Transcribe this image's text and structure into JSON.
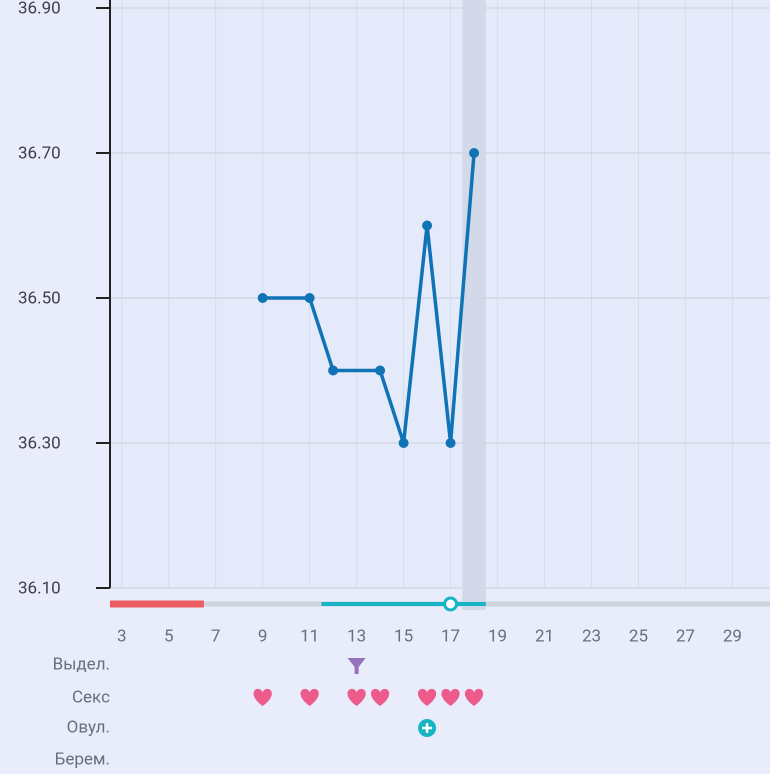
{
  "chart_data": {
    "type": "line",
    "x": [
      9,
      11,
      12,
      14,
      15,
      16,
      17,
      18
    ],
    "values": [
      36.5,
      36.5,
      36.4,
      36.4,
      36.3,
      36.6,
      36.3,
      36.7
    ],
    "color": "#0f73b6",
    "xlim": [
      2.5,
      30.6
    ],
    "xticks": [
      3,
      5,
      7,
      9,
      11,
      13,
      15,
      17,
      19,
      21,
      23,
      25,
      27,
      29
    ],
    "ylim": [
      36.1,
      36.9
    ],
    "yticks": [
      {
        "value": 36.1,
        "label": "36.10"
      },
      {
        "value": 36.3,
        "label": "36.30"
      },
      {
        "value": 36.5,
        "label": "36.50"
      },
      {
        "value": 36.7,
        "label": "36.70"
      },
      {
        "value": 36.9,
        "label": "36.90"
      }
    ],
    "grid": true,
    "current_day": 18,
    "period_days": [
      3,
      6
    ],
    "fertile_days": [
      12,
      18
    ],
    "ovulation_marker_day": 17,
    "rows": [
      {
        "label": "Выдел.",
        "days": [
          13
        ],
        "icon": "discharge"
      },
      {
        "label": "Секс",
        "days": [
          9,
          11,
          13,
          14,
          16,
          17,
          18
        ],
        "icon": "heart"
      },
      {
        "label": "Овул.",
        "days": [
          16
        ],
        "icon": "ovulation"
      },
      {
        "label": "Берем.",
        "days": [],
        "icon": "pregnancy"
      }
    ]
  }
}
